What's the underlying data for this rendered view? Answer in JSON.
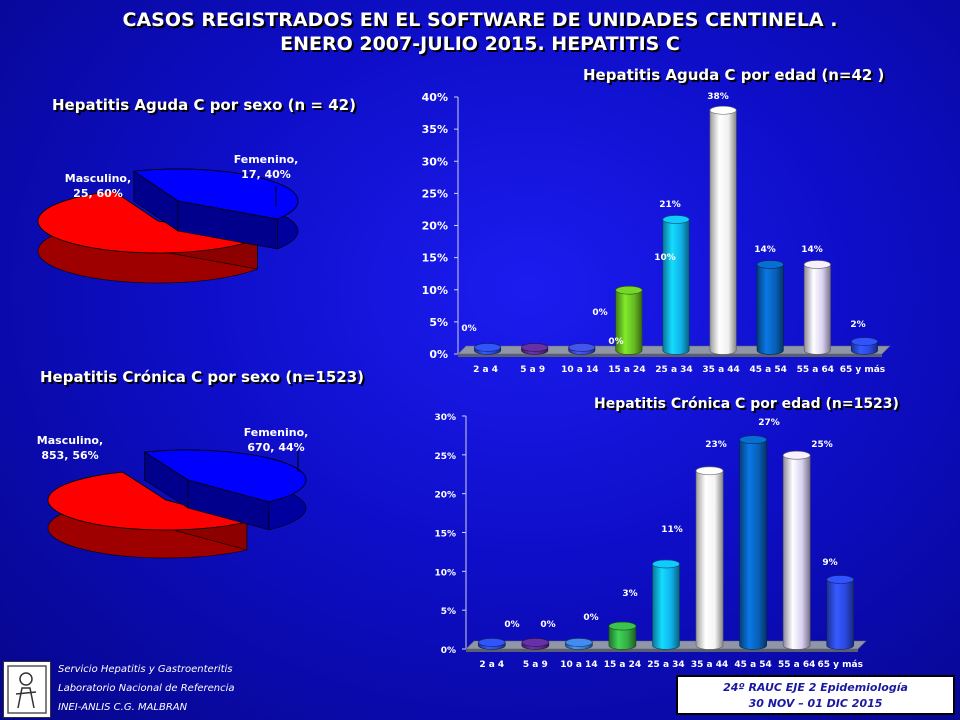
{
  "slide": {
    "title_line1": "CASOS REGISTRADOS EN EL SOFTWARE DE UNIDADES CENTINELA .",
    "title_line2": "ENERO 2007-JULIO 2015. HEPATITIS C"
  },
  "footer": {
    "lines": [
      "Servicio Hepatitis y Gastroenteritis",
      "Laboratorio Nacional de Referencia",
      "INEI-ANLIS C.G. MALBRAN"
    ],
    "box_line1": "24º RAUC  EJE 2  Epidemiología",
    "box_line2": "30 NOV – 01 DIC  2015"
  },
  "chart_data": [
    {
      "type": "pie",
      "title": "Hepatitis Aguda C por sexo (n = 42)",
      "labels": [
        "Masculino",
        "Femenino"
      ],
      "values": [
        25,
        17
      ],
      "percents": [
        "60%",
        "40%"
      ],
      "data_labels": [
        [
          "Masculino,",
          "25, 60%"
        ],
        [
          "Femenino,",
          "17, 40%"
        ]
      ],
      "colors": [
        "#ff0000",
        "#0000ff"
      ]
    },
    {
      "type": "bar",
      "title": "Hepatitis Aguda  C por edad (n=42 )",
      "categories": [
        "2 a 4",
        "5 a 9",
        "10 a 14",
        "15 a 24",
        "25 a 34",
        "35 a 44",
        "45 a 54",
        "55 a 64",
        "65 y más"
      ],
      "values": [
        0,
        0,
        0,
        10,
        21,
        38,
        14,
        14,
        2
      ],
      "data_labels": [
        "0%",
        "0%",
        "0%",
        "10%",
        "21%",
        "38%",
        "14%",
        "14%",
        "2%"
      ],
      "colors": [
        "#2a4ad8",
        "#5a2a90",
        "#3a4ad0",
        "#66bb22",
        "#10b0e8",
        "#f0f0f0",
        "#0860b8",
        "#d8d0f0",
        "#2a48e0"
      ],
      "ylim": [
        0,
        40
      ],
      "yticks": [
        "0%",
        "5%",
        "10%",
        "15%",
        "20%",
        "25%",
        "30%",
        "35%",
        "40%"
      ]
    },
    {
      "type": "pie",
      "title": "Hepatitis Crónica C por sexo (n=1523)",
      "labels": [
        "Masculino",
        "Femenino"
      ],
      "values": [
        853,
        670
      ],
      "percents": [
        "56%",
        "44%"
      ],
      "data_labels": [
        [
          "Masculino,",
          "853, 56%"
        ],
        [
          "Femenino,",
          "670, 44%"
        ]
      ],
      "colors": [
        "#ff0000",
        "#0000ff"
      ]
    },
    {
      "type": "bar",
      "title": "Hepatitis Crónica  C por edad (n=1523)",
      "categories": [
        "2 a 4",
        "5 a 9",
        "10 a 14",
        "15 a 24",
        "25 a 34",
        "35 a 44",
        "45 a 54",
        "55 a 64",
        "65 y más"
      ],
      "values": [
        0,
        0,
        0,
        3,
        11,
        23,
        27,
        25,
        9
      ],
      "data_labels": [
        "0%",
        "0%",
        "0%",
        "3%",
        "11%",
        "23%",
        "27%",
        "25%",
        "9%"
      ],
      "colors": [
        "#2a4ad8",
        "#5a2a90",
        "#3a7ad0",
        "#33aa44",
        "#10b0e8",
        "#f4f4f4",
        "#0860b8",
        "#d8d0f0",
        "#2a48e0"
      ],
      "ylim": [
        0,
        30
      ],
      "yticks": [
        "0%",
        "5%",
        "10%",
        "15%",
        "20%",
        "25%",
        "30%"
      ]
    }
  ]
}
